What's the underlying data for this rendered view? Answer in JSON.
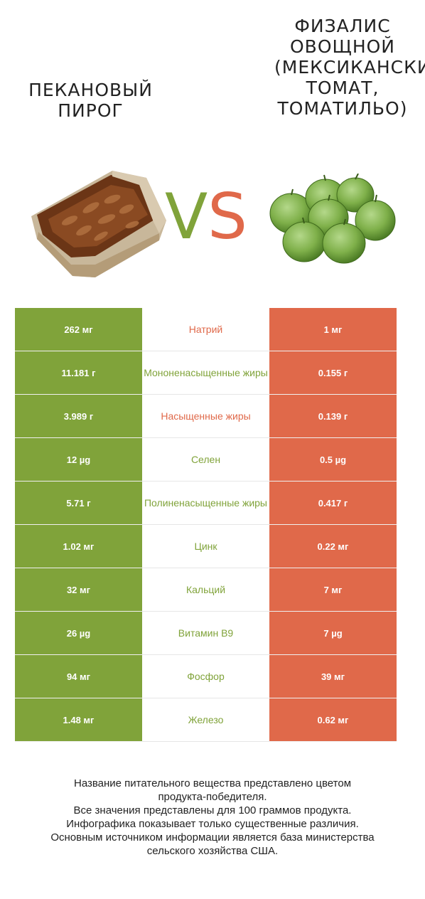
{
  "left_food": {
    "title": "Пекановый пирог",
    "color": "#80a33a",
    "image": "pecan-pie-slice"
  },
  "right_food": {
    "title_lines": [
      "Физалис",
      "овощной",
      "(Мексиканский",
      "томат,",
      "томатильо)"
    ],
    "color": "#e0694a",
    "image": "tomatillo-pile"
  },
  "vs": {
    "v": "V",
    "s": "S"
  },
  "rows": [
    {
      "left": "262 мг",
      "name": "Натрий",
      "right": "1 мг",
      "winner": "right"
    },
    {
      "left": "11.181 г",
      "name": "Мононенасыщенные жиры",
      "right": "0.155 г",
      "winner": "left"
    },
    {
      "left": "3.989 г",
      "name": "Насыщенные жиры",
      "right": "0.139 г",
      "winner": "right"
    },
    {
      "left": "12 µg",
      "name": "Селен",
      "right": "0.5 µg",
      "winner": "left"
    },
    {
      "left": "5.71 г",
      "name": "Полиненасыщенные жиры",
      "right": "0.417 г",
      "winner": "left"
    },
    {
      "left": "1.02 мг",
      "name": "Цинк",
      "right": "0.22 мг",
      "winner": "left"
    },
    {
      "left": "32 мг",
      "name": "Кальций",
      "right": "7 мг",
      "winner": "left"
    },
    {
      "left": "26 µg",
      "name": "Витамин B9",
      "right": "7 µg",
      "winner": "left"
    },
    {
      "left": "94 мг",
      "name": "Фосфор",
      "right": "39 мг",
      "winner": "left"
    },
    {
      "left": "1.48 мг",
      "name": "Железо",
      "right": "0.62 мг",
      "winner": "left"
    }
  ],
  "footer": {
    "lines": [
      "Название питательного вещества представлено цветом",
      "продукта-победителя.",
      "Все значения представлены для 100 граммов продукта.",
      "Инфографика показывает только существенные различия.",
      "Основным источником информации является база министерства",
      "сельского хозяйства США."
    ]
  }
}
